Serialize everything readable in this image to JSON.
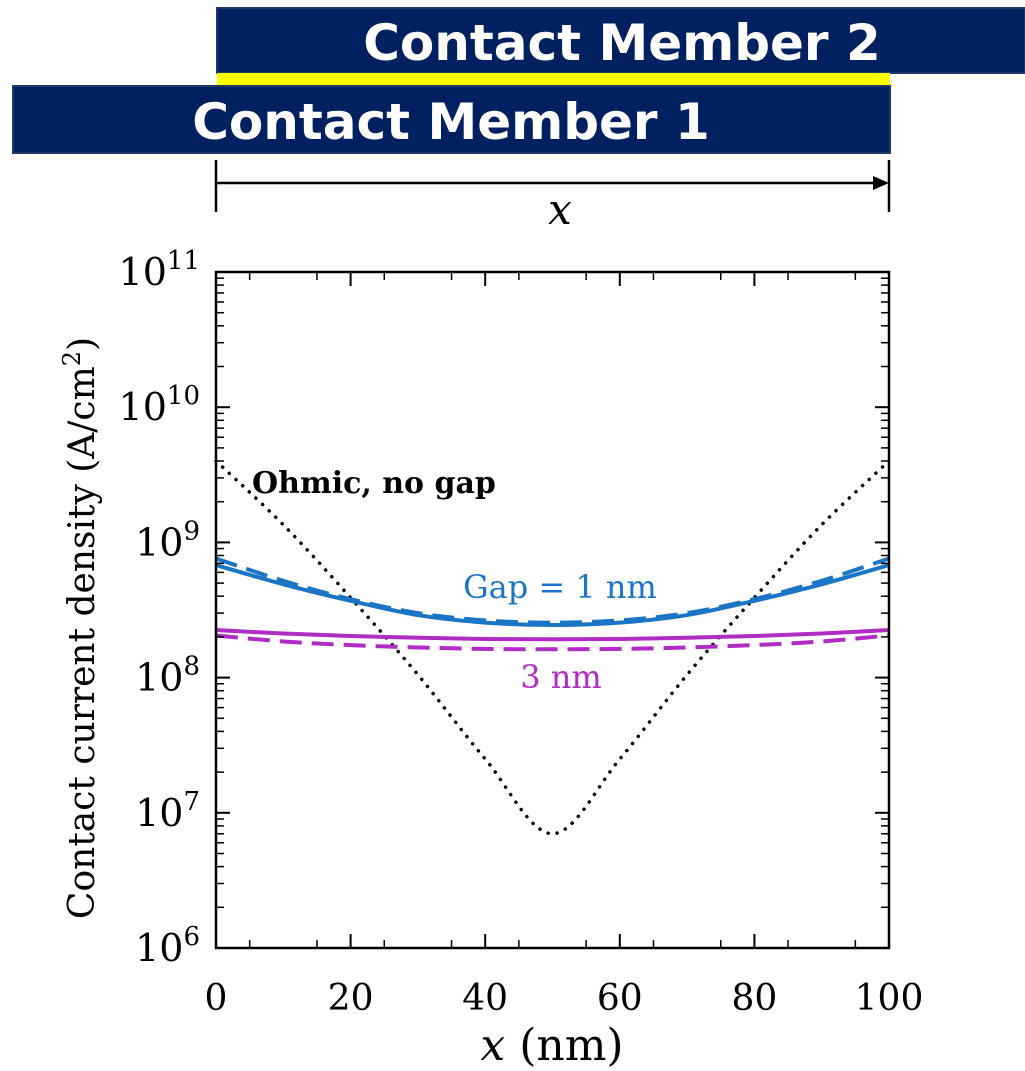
{
  "diagram": {
    "member2_label": "Contact Member 2",
    "member1_label": "Contact Member 1",
    "dimension_label": "x",
    "member_fill": "#002060",
    "interface_color": "#ffff00"
  },
  "chart_data": {
    "type": "line",
    "xlabel_var": "x",
    "xlabel_unit": " (nm)",
    "ylabel": "Contact current density (A/cm",
    "ylabel_sup": "2",
    "ylabel_close": ")",
    "xlim": [
      0,
      100
    ],
    "ylim": [
      1000000.0,
      100000000000.0
    ],
    "yscale": "log",
    "x_ticks": [
      "0",
      "20",
      "40",
      "60",
      "80",
      "100"
    ],
    "y_tick_base": "10",
    "y_tick_exponents": [
      "6",
      "7",
      "8",
      "9",
      "10",
      "11"
    ],
    "annotations": {
      "ohmic": "Ohmic, no gap",
      "gap1": "Gap = 1 nm",
      "gap3": "3 nm"
    },
    "series": [
      {
        "key": "ohmic",
        "color": "#000000",
        "style": "dotted",
        "x": [
          0,
          10,
          20,
          30,
          40,
          50,
          60,
          70,
          80,
          90,
          100
        ],
        "y": [
          4000000000.0,
          1350000000.0,
          390000000.0,
          105000000.0,
          25000000.0,
          7000000.0,
          25000000.0,
          105000000.0,
          390000000.0,
          1350000000.0,
          4000000000.0
        ]
      },
      {
        "key": "gap1_solid",
        "color": "#1b75c4",
        "style": "solid",
        "x": [
          0,
          10,
          20,
          30,
          40,
          50,
          60,
          70,
          80,
          90,
          100
        ],
        "y": [
          680000000.0,
          490000000.0,
          370000000.0,
          290000000.0,
          255000000.0,
          245000000.0,
          255000000.0,
          290000000.0,
          370000000.0,
          490000000.0,
          680000000.0
        ]
      },
      {
        "key": "gap1_dashed",
        "color": "#1b75c4",
        "style": "dashed",
        "x": [
          0,
          10,
          20,
          30,
          40,
          50,
          60,
          70,
          80,
          90,
          100
        ],
        "y": [
          760000000.0,
          520000000.0,
          380000000.0,
          300000000.0,
          265000000.0,
          255000000.0,
          265000000.0,
          300000000.0,
          380000000.0,
          520000000.0,
          760000000.0
        ]
      },
      {
        "key": "gap3_solid",
        "color": "#b12cc4",
        "style": "solid",
        "x": [
          0,
          10,
          20,
          30,
          40,
          50,
          60,
          70,
          80,
          90,
          100
        ],
        "y": [
          225000000.0,
          212000000.0,
          203000000.0,
          197000000.0,
          193000000.0,
          192000000.0,
          193000000.0,
          197000000.0,
          203000000.0,
          212000000.0,
          225000000.0
        ]
      },
      {
        "key": "gap3_dashed",
        "color": "#b12cc4",
        "style": "dashed",
        "x": [
          0,
          10,
          20,
          30,
          40,
          50,
          60,
          70,
          80,
          90,
          100
        ],
        "y": [
          205000000.0,
          185000000.0,
          174000000.0,
          167000000.0,
          163000000.0,
          162000000.0,
          163000000.0,
          167000000.0,
          174000000.0,
          185000000.0,
          205000000.0
        ]
      }
    ]
  }
}
